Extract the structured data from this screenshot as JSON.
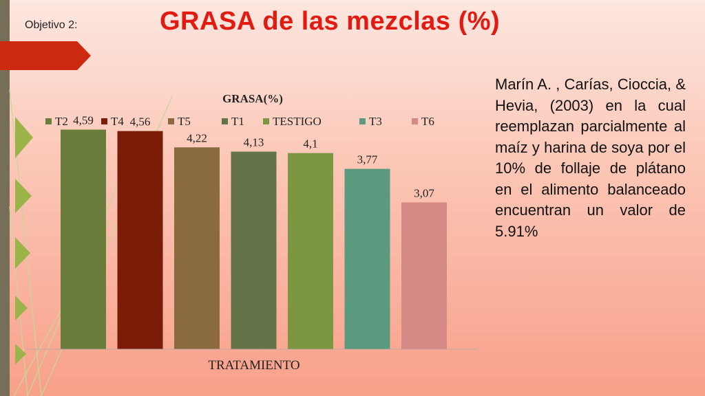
{
  "slide": {
    "label": "Objetivo 2:",
    "title": "GRASA de las mezclas (%)",
    "citation": "Marín A. , Carías, Cioccia, & Hevia, (2003) en la cual reemplazan parcialmente al maíz y harina de soya por el 10% de follaje de plátano en el alimento balanceado encuentran un valor de 5.91%"
  },
  "chart_data": {
    "type": "bar",
    "title": "GRASA(%)",
    "xlabel": "TRATAMIENTO",
    "ylabel": "",
    "categories": [
      "T2",
      "T4",
      "T5",
      "T1",
      "TESTIGO",
      "T3",
      "T6"
    ],
    "values": [
      4.59,
      4.56,
      4.22,
      4.13,
      4.1,
      3.77,
      3.07
    ],
    "value_labels": [
      "4,59",
      "4,56",
      "4,22",
      "4,13",
      "4,1",
      "3,77",
      "3,07"
    ],
    "colors": [
      "#6b7d3c",
      "#7a1c08",
      "#8a6b40",
      "#637347",
      "#7d9642",
      "#5c9a80",
      "#d68a86"
    ],
    "ylim": [
      0,
      5
    ],
    "grid": false,
    "legend": "top"
  }
}
